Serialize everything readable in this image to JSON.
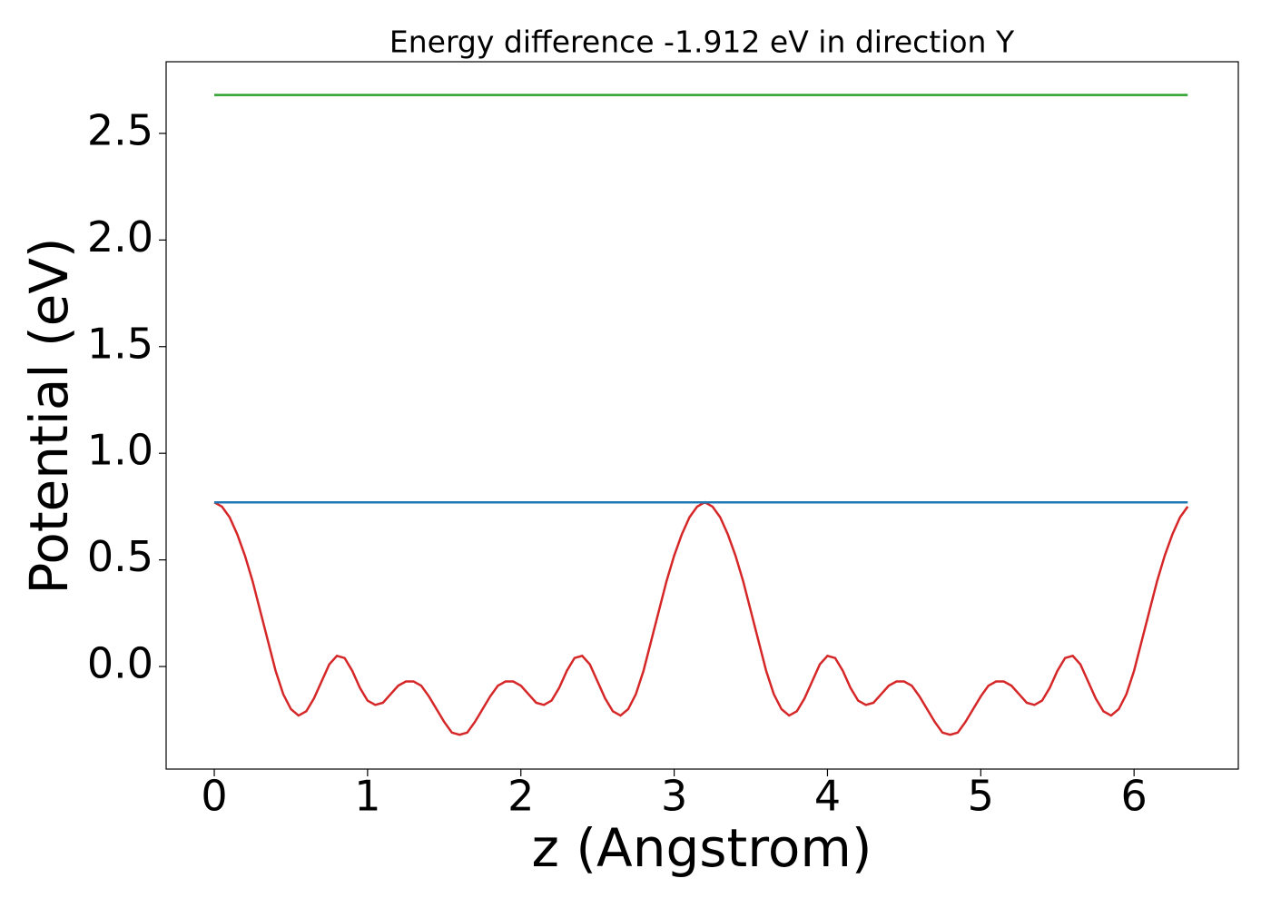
{
  "chart_data": {
    "type": "line",
    "title": "Energy difference -1.912 eV in direction Y",
    "xlabel": "z (Angstrom)",
    "ylabel": "Potential (eV)",
    "xlim": [
      -0.314,
      6.68
    ],
    "ylim": [
      -0.481,
      2.836
    ],
    "xticks": [
      0,
      1,
      2,
      3,
      4,
      5,
      6
    ],
    "yticks": [
      {
        "value": 0,
        "label": "0.0"
      },
      0.5,
      {
        "value": 1,
        "label": "1.0"
      },
      1.5,
      {
        "value": 2,
        "label": "2.0"
      },
      2.5
    ],
    "series": [
      {
        "color": "#d62728",
        "x": [
          0,
          0.05,
          0.1,
          0.15,
          0.2,
          0.25,
          0.3,
          0.35,
          0.4,
          0.45,
          0.5,
          0.55,
          0.6,
          0.65,
          0.7,
          0.75,
          0.8,
          0.85,
          0.9,
          0.95,
          1.0,
          1.05,
          1.1,
          1.15,
          1.2,
          1.25,
          1.3,
          1.35,
          1.4,
          1.45,
          1.5,
          1.55,
          1.6,
          1.65,
          1.7,
          1.75,
          1.8,
          1.85,
          1.9,
          1.95,
          2.0,
          2.05,
          2.1,
          2.15,
          2.2,
          2.25,
          2.3,
          2.35,
          2.4,
          2.45,
          2.5,
          2.55,
          2.6,
          2.65,
          2.7,
          2.75,
          2.8,
          2.85,
          2.9,
          2.95,
          3.0,
          3.05,
          3.1,
          3.15,
          3.2,
          3.25,
          3.3,
          3.35,
          3.4,
          3.45,
          3.5,
          3.55,
          3.6,
          3.65,
          3.7,
          3.75,
          3.8,
          3.85,
          3.9,
          3.95,
          4.0,
          4.05,
          4.1,
          4.15,
          4.2,
          4.25,
          4.3,
          4.35,
          4.4,
          4.45,
          4.5,
          4.55,
          4.6,
          4.65,
          4.7,
          4.75,
          4.8,
          4.85,
          4.9,
          4.95,
          5.0,
          5.05,
          5.1,
          5.15,
          5.2,
          5.25,
          5.3,
          5.35,
          5.4,
          5.45,
          5.5,
          5.55,
          5.6,
          5.65,
          5.7,
          5.75,
          5.8,
          5.85,
          5.9,
          5.95,
          6.0,
          6.05,
          6.1,
          6.15,
          6.2,
          6.25,
          6.3,
          6.35
        ],
        "values": [
          0.77,
          0.75,
          0.7,
          0.62,
          0.52,
          0.4,
          0.26,
          0.12,
          -0.02,
          -0.13,
          -0.2,
          -0.23,
          -0.21,
          -0.15,
          -0.07,
          0.01,
          0.05,
          0.04,
          -0.02,
          -0.1,
          -0.16,
          -0.18,
          -0.17,
          -0.13,
          -0.09,
          -0.07,
          -0.07,
          -0.09,
          -0.14,
          -0.2,
          -0.26,
          -0.31,
          -0.32,
          -0.31,
          -0.26,
          -0.2,
          -0.14,
          -0.09,
          -0.07,
          -0.07,
          -0.09,
          -0.13,
          -0.17,
          -0.18,
          -0.16,
          -0.1,
          -0.02,
          0.04,
          0.05,
          0.01,
          -0.07,
          -0.15,
          -0.21,
          -0.23,
          -0.2,
          -0.13,
          -0.02,
          0.12,
          0.26,
          0.4,
          0.52,
          0.62,
          0.7,
          0.75,
          0.77,
          0.75,
          0.7,
          0.62,
          0.52,
          0.4,
          0.26,
          0.12,
          -0.02,
          -0.13,
          -0.2,
          -0.23,
          -0.21,
          -0.15,
          -0.07,
          0.01,
          0.05,
          0.04,
          -0.02,
          -0.1,
          -0.16,
          -0.18,
          -0.17,
          -0.13,
          -0.09,
          -0.07,
          -0.07,
          -0.09,
          -0.14,
          -0.2,
          -0.26,
          -0.31,
          -0.32,
          -0.31,
          -0.26,
          -0.2,
          -0.14,
          -0.09,
          -0.07,
          -0.07,
          -0.09,
          -0.13,
          -0.17,
          -0.18,
          -0.16,
          -0.1,
          -0.02,
          0.04,
          0.05,
          0.01,
          -0.07,
          -0.15,
          -0.21,
          -0.23,
          -0.2,
          -0.13,
          -0.02,
          0.12,
          0.26,
          0.4,
          0.52,
          0.62,
          0.7,
          0.75
        ]
      },
      {
        "color": "#1f77b4",
        "x": [
          0,
          6.35
        ],
        "values": [
          0.77,
          0.77
        ]
      },
      {
        "color": "#2ca02c",
        "x": [
          0,
          6.35
        ],
        "values": [
          2.68,
          2.68
        ]
      }
    ]
  }
}
